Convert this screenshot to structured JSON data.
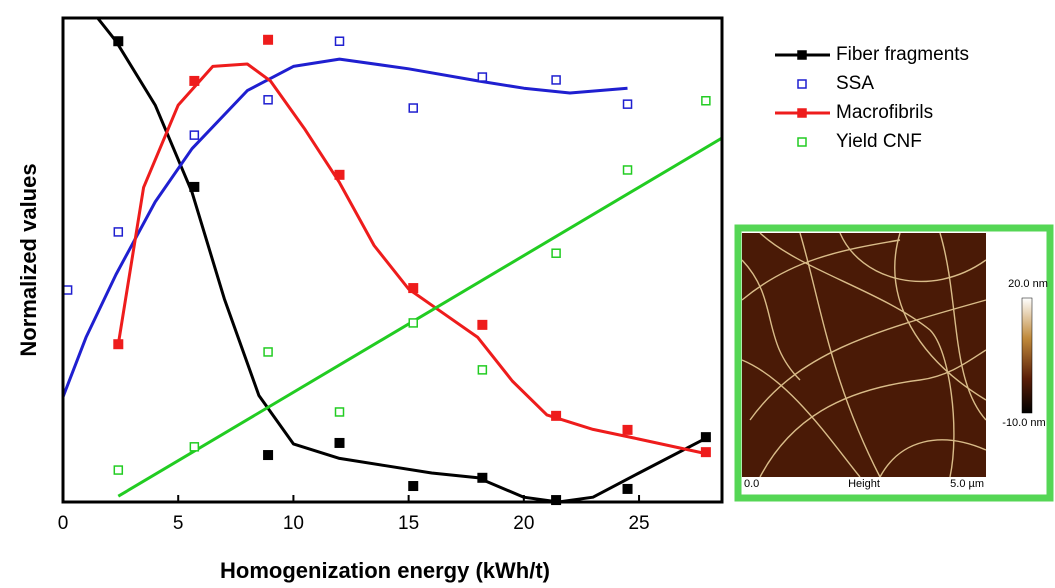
{
  "chart_data": {
    "type": "scatter",
    "x_label": "Homogenization energy (kWh/t)",
    "y_label": "Normalized values",
    "xlim": [
      0,
      28.6
    ],
    "ylim": [
      0,
      1
    ],
    "xticks": [
      0,
      5,
      10,
      15,
      20,
      25
    ],
    "series": [
      {
        "name": "Fiber fragments",
        "color": "#000000",
        "filled": true,
        "legend_line": true,
        "x": [
          2.4,
          5.7,
          8.9,
          12.0,
          15.2,
          18.2,
          21.4,
          24.5,
          27.9
        ],
        "values": [
          0.952,
          0.651,
          0.097,
          0.122,
          0.033,
          0.05,
          0.004,
          0.027,
          0.134
        ],
        "curve": {
          "x": [
            1.5,
            2.3,
            4,
            5.6,
            7,
            8.5,
            10,
            12,
            14,
            16,
            18,
            20,
            21.5,
            23,
            25,
            28
          ],
          "y": [
            1.0,
            0.952,
            0.82,
            0.64,
            0.42,
            0.22,
            0.12,
            0.09,
            0.075,
            0.06,
            0.05,
            0.01,
            0.0,
            0.01,
            0.06,
            0.134
          ]
        }
      },
      {
        "name": "SSA",
        "color": "#1f1fd0",
        "filled": false,
        "legend_line": false,
        "x": [
          0.2,
          2.4,
          5.7,
          8.9,
          12.0,
          15.2,
          18.2,
          21.4,
          24.5
        ],
        "values": [
          0.438,
          0.558,
          0.758,
          0.831,
          0.952,
          0.814,
          0.878,
          0.872,
          0.822
        ],
        "curve": {
          "x": [
            0,
            1,
            2.3,
            4,
            5.6,
            8,
            10,
            12,
            15,
            18,
            20,
            22,
            24.5
          ],
          "y": [
            0.217,
            0.34,
            0.47,
            0.62,
            0.73,
            0.85,
            0.9,
            0.915,
            0.895,
            0.87,
            0.855,
            0.845,
            0.855
          ]
        }
      },
      {
        "name": "Macrofibrils",
        "color": "#ee1c1c",
        "filled": true,
        "legend_line": true,
        "x": [
          2.4,
          5.7,
          8.9,
          12.0,
          15.2,
          18.2,
          21.4,
          24.5,
          27.9
        ],
        "values": [
          0.326,
          0.87,
          0.955,
          0.676,
          0.442,
          0.366,
          0.178,
          0.149,
          0.103
        ],
        "curve": {
          "x": [
            2.4,
            3.5,
            5,
            6.5,
            8,
            9,
            10.5,
            12,
            13.5,
            15,
            16.5,
            18,
            19.5,
            21,
            23,
            25,
            27.9
          ],
          "y": [
            0.326,
            0.65,
            0.82,
            0.9,
            0.905,
            0.87,
            0.77,
            0.66,
            0.53,
            0.44,
            0.39,
            0.34,
            0.25,
            0.18,
            0.15,
            0.13,
            0.1
          ]
        }
      },
      {
        "name": "Yield CNF",
        "color": "#22cc22",
        "filled": false,
        "legend_line": false,
        "x": [
          2.4,
          5.7,
          8.9,
          12.0,
          15.2,
          18.2,
          21.4,
          24.5,
          27.9
        ],
        "values": [
          0.066,
          0.114,
          0.31,
          0.186,
          0.37,
          0.273,
          0.514,
          0.686,
          0.829
        ],
        "curve": {
          "x": [
            2.4,
            28.6
          ],
          "y": [
            0.012,
            0.752
          ]
        }
      }
    ],
    "inset": {
      "scale_max": "20.0 nm",
      "scale_min": "-10.0 nm",
      "x_start": "0.0",
      "channel": "Height",
      "x_end": "5.0 µm"
    }
  }
}
